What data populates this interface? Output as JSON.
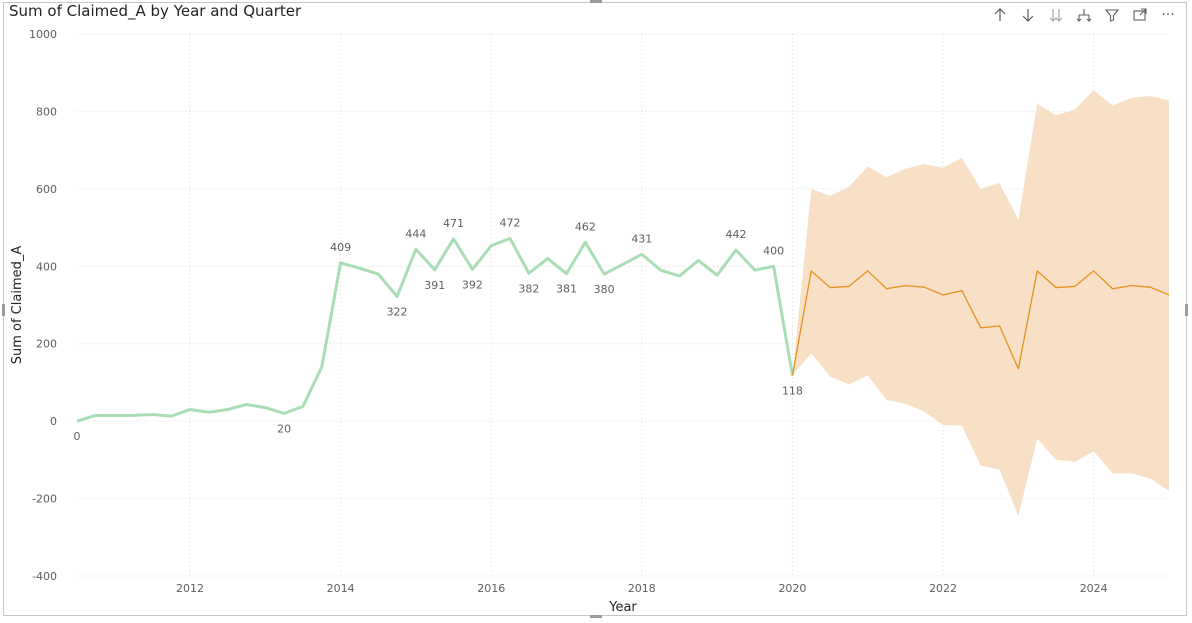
{
  "title": "Sum of Claimed_A by Year and Quarter",
  "toolbar": {
    "icons": [
      "arrow-up-icon",
      "arrow-down-icon",
      "double-arrow-down-icon",
      "expand-hierarchy-icon",
      "filter-icon",
      "focus-mode-icon",
      "more-options-icon"
    ],
    "more_label": "···"
  },
  "colors": {
    "actual": "#a8ddb5",
    "forecast": "#e8901c",
    "band": "#f8e0c6",
    "grid": "#d9d9d9",
    "text": "#605e5c"
  },
  "chart_data": {
    "type": "line",
    "title": "Sum of Claimed_A by Year and Quarter",
    "xlabel": "Year",
    "ylabel": "Sum of Claimed_A",
    "xlim": [
      2010.5,
      2025.0
    ],
    "ylim": [
      -400,
      1000
    ],
    "xticks": [
      2012,
      2014,
      2016,
      2018,
      2020,
      2022,
      2024
    ],
    "yticks": [
      -400,
      -200,
      0,
      200,
      400,
      600,
      800,
      1000
    ],
    "grid": true,
    "series": [
      {
        "kind": "actual",
        "x": [
          2010.5,
          2010.75,
          2011.0,
          2011.25,
          2011.5,
          2011.75,
          2012.0,
          2012.25,
          2012.5,
          2012.75,
          2013.0,
          2013.25,
          2013.5,
          2013.75,
          2014.0,
          2014.25,
          2014.5,
          2014.75,
          2015.0,
          2015.25,
          2015.5,
          2015.75,
          2016.0,
          2016.25,
          2016.5,
          2016.75,
          2017.0,
          2017.25,
          2017.5,
          2017.75,
          2018.0,
          2018.25,
          2018.5,
          2018.75,
          2019.0,
          2019.25,
          2019.5,
          2019.75,
          2020.0
        ],
        "y": [
          0,
          15,
          15,
          15,
          17,
          13,
          30,
          23,
          30,
          43,
          35,
          20,
          38,
          140,
          409,
          395,
          380,
          322,
          444,
          391,
          471,
          392,
          453,
          472,
          382,
          420,
          381,
          462,
          380,
          405,
          431,
          390,
          375,
          415,
          377,
          442,
          390,
          400,
          118
        ]
      },
      {
        "kind": "forecast",
        "x": [
          2020.0,
          2020.25,
          2020.5,
          2020.75,
          2021.0,
          2021.25,
          2021.5,
          2021.75,
          2022.0,
          2022.25,
          2022.5,
          2022.75,
          2023.0,
          2023.25,
          2023.5,
          2023.75,
          2024.0,
          2024.25,
          2024.5,
          2024.75,
          2025.0
        ],
        "y": [
          118,
          388,
          345,
          348,
          388,
          342,
          350,
          346,
          326,
          337,
          241,
          246,
          135,
          388,
          345,
          348,
          388,
          342,
          350,
          346,
          326
        ],
        "upper": [
          118,
          600,
          582,
          605,
          658,
          630,
          652,
          664,
          655,
          680,
          600,
          615,
          520,
          820,
          790,
          805,
          855,
          815,
          835,
          840,
          828
        ],
        "lower": [
          118,
          175,
          115,
          95,
          118,
          55,
          45,
          25,
          -10,
          -12,
          -115,
          -125,
          -245,
          -45,
          -100,
          -105,
          -78,
          -135,
          -135,
          -148,
          -180
        ]
      }
    ],
    "data_labels": [
      {
        "x": 2010.5,
        "y": 0,
        "text": "0",
        "pos": "below"
      },
      {
        "x": 2013.25,
        "y": 20,
        "text": "20",
        "pos": "below"
      },
      {
        "x": 2014.0,
        "y": 409,
        "text": "409",
        "pos": "above"
      },
      {
        "x": 2014.75,
        "y": 322,
        "text": "322",
        "pos": "below"
      },
      {
        "x": 2015.0,
        "y": 444,
        "text": "444",
        "pos": "above"
      },
      {
        "x": 2015.25,
        "y": 391,
        "text": "391",
        "pos": "below"
      },
      {
        "x": 2015.5,
        "y": 471,
        "text": "471",
        "pos": "above"
      },
      {
        "x": 2015.75,
        "y": 392,
        "text": "392",
        "pos": "below"
      },
      {
        "x": 2016.25,
        "y": 472,
        "text": "472",
        "pos": "above"
      },
      {
        "x": 2016.5,
        "y": 382,
        "text": "382",
        "pos": "below"
      },
      {
        "x": 2017.0,
        "y": 381,
        "text": "381",
        "pos": "below"
      },
      {
        "x": 2017.25,
        "y": 462,
        "text": "462",
        "pos": "above"
      },
      {
        "x": 2017.5,
        "y": 380,
        "text": "380",
        "pos": "below"
      },
      {
        "x": 2018.0,
        "y": 431,
        "text": "431",
        "pos": "above"
      },
      {
        "x": 2019.25,
        "y": 442,
        "text": "442",
        "pos": "above"
      },
      {
        "x": 2019.75,
        "y": 400,
        "text": "400",
        "pos": "above"
      },
      {
        "x": 2020.0,
        "y": 118,
        "text": "118",
        "pos": "below"
      }
    ]
  }
}
